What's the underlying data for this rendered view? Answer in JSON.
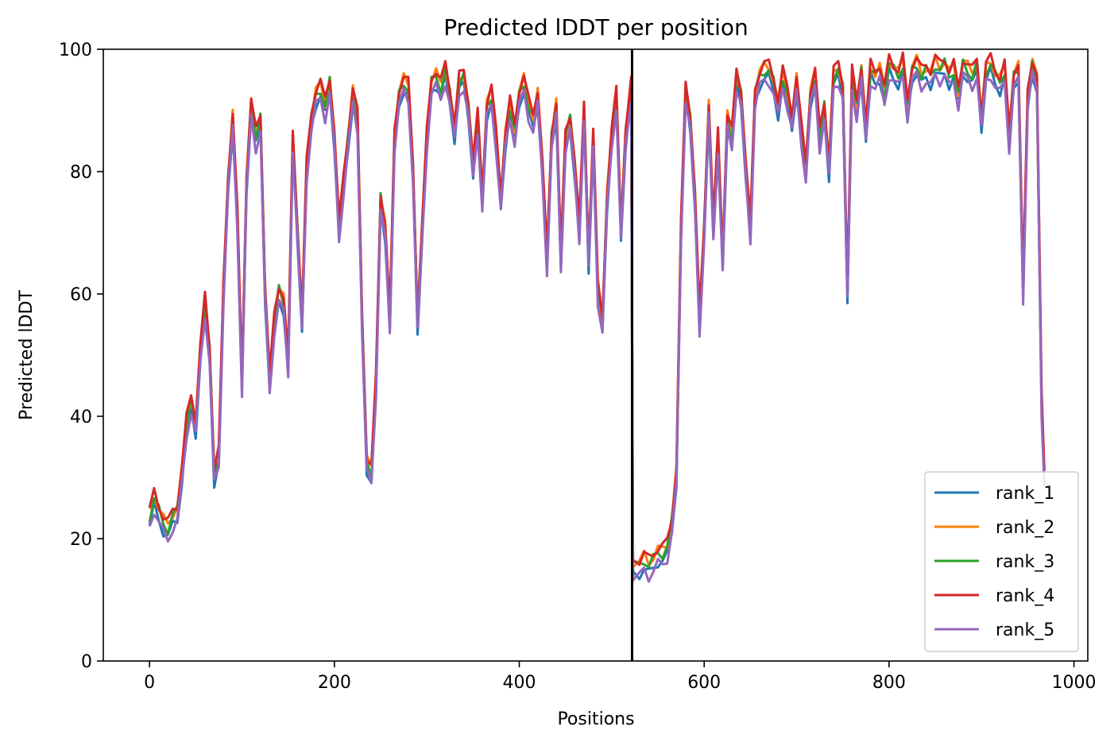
{
  "chart_data": {
    "type": "line",
    "title": "Predicted lDDT per position",
    "xlabel": "Positions",
    "ylabel": "Predicted lDDT",
    "xlim": [
      -50,
      1015
    ],
    "ylim": [
      0,
      100
    ],
    "xticks": [
      0,
      200,
      400,
      600,
      800,
      1000
    ],
    "yticks": [
      0,
      20,
      40,
      60,
      80,
      100
    ],
    "legend_position": "lower-right",
    "grid": false,
    "chain_break": 522,
    "annotation_color": "#000000",
    "series": [
      {
        "name": "rank_1",
        "color": "#1f77b4",
        "offset": -0.8
      },
      {
        "name": "rank_2",
        "color": "#ff7f0e",
        "offset": 1.2
      },
      {
        "name": "rank_3",
        "color": "#2ca02c",
        "offset": 0.6
      },
      {
        "name": "rank_4",
        "color": "#d62728",
        "offset": 1.6
      },
      {
        "name": "rank_5",
        "color": "#9467bd",
        "offset": -1.2
      }
    ],
    "profile_x": [
      0,
      5,
      10,
      15,
      20,
      25,
      30,
      35,
      40,
      45,
      50,
      55,
      60,
      65,
      70,
      75,
      80,
      85,
      90,
      95,
      100,
      105,
      110,
      115,
      120,
      125,
      130,
      135,
      140,
      145,
      150,
      155,
      160,
      165,
      170,
      175,
      180,
      185,
      190,
      195,
      200,
      205,
      210,
      215,
      220,
      225,
      230,
      235,
      240,
      245,
      250,
      255,
      260,
      265,
      270,
      275,
      280,
      285,
      290,
      295,
      300,
      305,
      310,
      315,
      320,
      325,
      330,
      335,
      340,
      345,
      350,
      355,
      360,
      365,
      370,
      375,
      380,
      385,
      390,
      395,
      400,
      405,
      410,
      415,
      420,
      425,
      430,
      435,
      440,
      445,
      450,
      455,
      460,
      465,
      470,
      475,
      480,
      485,
      490,
      495,
      500,
      505,
      510,
      515,
      521,
      523,
      530,
      535,
      540,
      545,
      550,
      555,
      560,
      565,
      570,
      575,
      580,
      585,
      590,
      595,
      600,
      605,
      610,
      615,
      620,
      625,
      630,
      635,
      640,
      645,
      650,
      655,
      660,
      665,
      670,
      675,
      680,
      685,
      690,
      695,
      700,
      705,
      710,
      715,
      720,
      725,
      730,
      735,
      740,
      745,
      750,
      755,
      760,
      765,
      770,
      775,
      780,
      785,
      790,
      795,
      800,
      805,
      810,
      815,
      820,
      825,
      830,
      835,
      840,
      845,
      850,
      855,
      860,
      865,
      870,
      875,
      880,
      885,
      890,
      895,
      900,
      905,
      910,
      915,
      920,
      925,
      930,
      935,
      940,
      945,
      950,
      955,
      960,
      965,
      968
    ],
    "profile_y": [
      23,
      26,
      24,
      22,
      21,
      23,
      24,
      30,
      38,
      42,
      38,
      50,
      58,
      50,
      30,
      33,
      60,
      78,
      88,
      72,
      45,
      78,
      90,
      85,
      88,
      60,
      45,
      55,
      60,
      58,
      48,
      85,
      70,
      55,
      80,
      88,
      92,
      93,
      90,
      94,
      85,
      70,
      78,
      85,
      92,
      88,
      55,
      32,
      30,
      45,
      75,
      70,
      55,
      85,
      92,
      94,
      93,
      80,
      55,
      70,
      85,
      94,
      95,
      93,
      96,
      92,
      86,
      94,
      95,
      90,
      80,
      88,
      75,
      90,
      92,
      85,
      75,
      85,
      90,
      86,
      92,
      94,
      90,
      88,
      92,
      80,
      65,
      85,
      90,
      65,
      85,
      88,
      80,
      70,
      90,
      65,
      85,
      60,
      55,
      75,
      85,
      92,
      70,
      85,
      93,
      15,
      15,
      16,
      15,
      16,
      17,
      17,
      18,
      22,
      30,
      70,
      93,
      88,
      75,
      55,
      70,
      90,
      70,
      85,
      65,
      88,
      85,
      95,
      92,
      80,
      70,
      92,
      95,
      96,
      96,
      94,
      90,
      95,
      92,
      88,
      94,
      86,
      80,
      92,
      95,
      85,
      90,
      80,
      95,
      96,
      93,
      60,
      95,
      90,
      96,
      86,
      96,
      95,
      96,
      92,
      97,
      96,
      95,
      97,
      90,
      96,
      97,
      95,
      96,
      95,
      97,
      96,
      97,
      95,
      96,
      92,
      97,
      96,
      95,
      97,
      88,
      96,
      97,
      95,
      94,
      96,
      85,
      95,
      96,
      60,
      92,
      97,
      94,
      42,
      30
    ]
  }
}
